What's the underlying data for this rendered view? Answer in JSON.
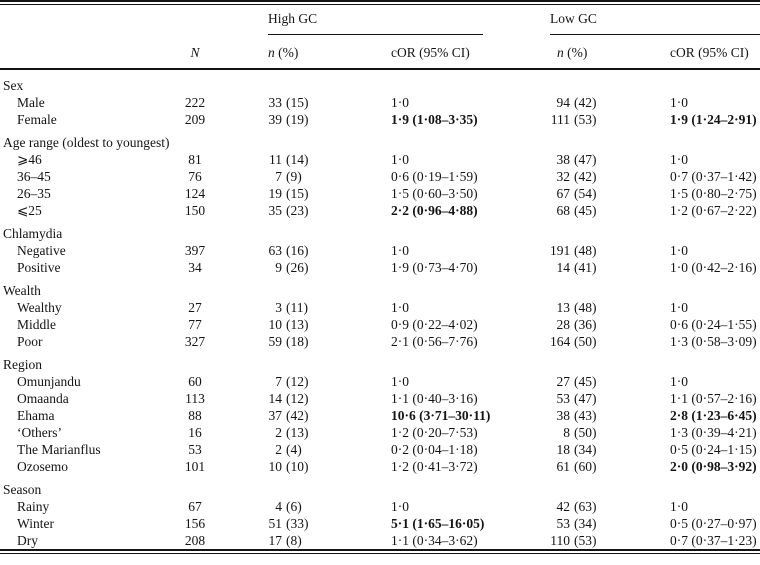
{
  "colors": {
    "text": "#141414",
    "rule": "#141414",
    "background": "#ffffff"
  },
  "table": {
    "header": {
      "group_high": "High GC",
      "group_low": "Low GC",
      "n_label": "N",
      "n_pct_italic": "n",
      "n_pct_suffix": " (%)",
      "cor_label": "cOR (95% CI)"
    },
    "sections": [
      {
        "label": "Sex",
        "rows": [
          {
            "label": "Male",
            "n": "222",
            "high": {
              "n": "33",
              "pct": "(15)",
              "cor": "1·0",
              "bold": false
            },
            "low": {
              "n": "94",
              "pct": "(42)",
              "cor": "1·0",
              "bold": false
            }
          },
          {
            "label": "Female",
            "n": "209",
            "high": {
              "n": "39",
              "pct": "(19)",
              "cor": "1·9 (1·08–3·35)",
              "bold": true
            },
            "low": {
              "n": "111",
              "pct": "(53)",
              "cor": "1·9 (1·24–2·91)",
              "bold": true
            }
          }
        ]
      },
      {
        "label": "Age range (oldest to youngest)",
        "rows": [
          {
            "label": "⩾46",
            "n": "81",
            "high": {
              "n": "11",
              "pct": "(14)",
              "cor": "1·0",
              "bold": false
            },
            "low": {
              "n": "38",
              "pct": "(47)",
              "cor": "1·0",
              "bold": false
            }
          },
          {
            "label": "36–45",
            "n": "76",
            "high": {
              "n": "7",
              "pct": "(9)",
              "cor": "0·6 (0·19–1·59)",
              "bold": false
            },
            "low": {
              "n": "32",
              "pct": "(42)",
              "cor": "0·7 (0·37–1·42)",
              "bold": false
            }
          },
          {
            "label": "26–35",
            "n": "124",
            "high": {
              "n": "19",
              "pct": "(15)",
              "cor": "1·5 (0·60–3·50)",
              "bold": false
            },
            "low": {
              "n": "67",
              "pct": "(54)",
              "cor": "1·5 (0·80–2·75)",
              "bold": false
            }
          },
          {
            "label": "⩽25",
            "n": "150",
            "high": {
              "n": "35",
              "pct": "(23)",
              "cor": "2·2 (0·96–4·88)",
              "bold": true
            },
            "low": {
              "n": "68",
              "pct": "(45)",
              "cor": "1·2 (0·67–2·22)",
              "bold": false
            }
          }
        ]
      },
      {
        "label": "Chlamydia",
        "rows": [
          {
            "label": "Negative",
            "n": "397",
            "high": {
              "n": "63",
              "pct": "(16)",
              "cor": "1·0",
              "bold": false
            },
            "low": {
              "n": "191",
              "pct": "(48)",
              "cor": "1·0",
              "bold": false
            }
          },
          {
            "label": "Positive",
            "n": "34",
            "high": {
              "n": "9",
              "pct": "(26)",
              "cor": "1·9 (0·73–4·70)",
              "bold": false
            },
            "low": {
              "n": "14",
              "pct": "(41)",
              "cor": "1·0 (0·42–2·16)",
              "bold": false
            }
          }
        ]
      },
      {
        "label": "Wealth",
        "rows": [
          {
            "label": "Wealthy",
            "n": "27",
            "high": {
              "n": "3",
              "pct": "(11)",
              "cor": "1·0",
              "bold": false
            },
            "low": {
              "n": "13",
              "pct": "(48)",
              "cor": "1·0",
              "bold": false
            }
          },
          {
            "label": "Middle",
            "n": "77",
            "high": {
              "n": "10",
              "pct": "(13)",
              "cor": "0·9 (0·22–4·02)",
              "bold": false
            },
            "low": {
              "n": "28",
              "pct": "(36)",
              "cor": "0·6 (0·24–1·55)",
              "bold": false
            }
          },
          {
            "label": "Poor",
            "n": "327",
            "high": {
              "n": "59",
              "pct": "(18)",
              "cor": "2·1 (0·56–7·76)",
              "bold": false
            },
            "low": {
              "n": "164",
              "pct": "(50)",
              "cor": "1·3 (0·58–3·09)",
              "bold": false
            }
          }
        ]
      },
      {
        "label": "Region",
        "rows": [
          {
            "label": "Omunjandu",
            "n": "60",
            "high": {
              "n": "7",
              "pct": "(12)",
              "cor": "1·0",
              "bold": false
            },
            "low": {
              "n": "27",
              "pct": "(45)",
              "cor": "1·0",
              "bold": false
            }
          },
          {
            "label": "Omaanda",
            "n": "113",
            "high": {
              "n": "14",
              "pct": "(12)",
              "cor": "1·1 (0·40–3·16)",
              "bold": false
            },
            "low": {
              "n": "53",
              "pct": "(47)",
              "cor": "1·1 (0·57–2·16)",
              "bold": false
            }
          },
          {
            "label": "Ehama",
            "n": "88",
            "high": {
              "n": "37",
              "pct": "(42)",
              "cor": "10·6 (3·71–30·11)",
              "bold": true
            },
            "low": {
              "n": "38",
              "pct": "(43)",
              "cor": "2·8 (1·23–6·45)",
              "bold": true
            }
          },
          {
            "label": "‘Others’",
            "n": "16",
            "high": {
              "n": "2",
              "pct": "(13)",
              "cor": "1·2 (0·20–7·53)",
              "bold": false
            },
            "low": {
              "n": "8",
              "pct": "(50)",
              "cor": "1·3 (0·39–4·21)",
              "bold": false
            }
          },
          {
            "label": "The Marianflus",
            "n": "53",
            "high": {
              "n": "2",
              "pct": "(4)",
              "cor": "0·2 (0·04–1·18)",
              "bold": false
            },
            "low": {
              "n": "18",
              "pct": "(34)",
              "cor": "0·5 (0·24–1·15)",
              "bold": false
            }
          },
          {
            "label": "Ozosemo",
            "n": "101",
            "high": {
              "n": "10",
              "pct": "(10)",
              "cor": "1·2 (0·41–3·72)",
              "bold": false
            },
            "low": {
              "n": "61",
              "pct": "(60)",
              "cor": "2·0 (0·98–3·92)",
              "bold": true
            }
          }
        ]
      },
      {
        "label": "Season",
        "rows": [
          {
            "label": "Rainy",
            "n": "67",
            "high": {
              "n": "4",
              "pct": "(6)",
              "cor": "1·0",
              "bold": false
            },
            "low": {
              "n": "42",
              "pct": "(63)",
              "cor": "1·0",
              "bold": false
            }
          },
          {
            "label": "Winter",
            "n": "156",
            "high": {
              "n": "51",
              "pct": "(33)",
              "cor": "5·1 (1·65–16·05)",
              "bold": true
            },
            "low": {
              "n": "53",
              "pct": "(34)",
              "cor": "0·5 (0·27–0·97)",
              "bold": false
            }
          },
          {
            "label": "Dry",
            "n": "208",
            "high": {
              "n": "17",
              "pct": "(8)",
              "cor": "1·1 (0·34–3·62)",
              "bold": false
            },
            "low": {
              "n": "110",
              "pct": "(53)",
              "cor": "0·7 (0·37–1·23)",
              "bold": false
            }
          }
        ]
      }
    ]
  }
}
